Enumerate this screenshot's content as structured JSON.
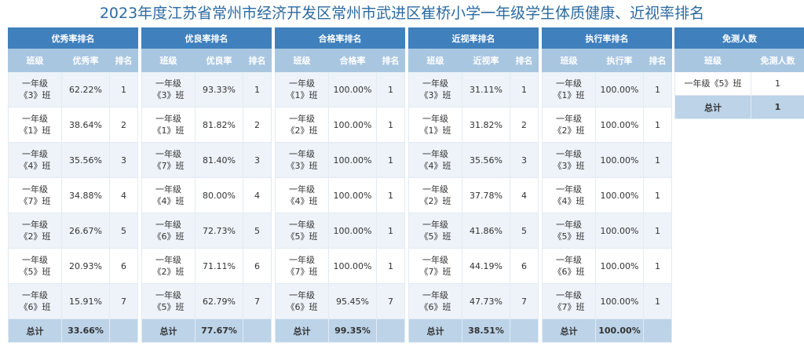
{
  "title": "2023年度江苏省常州市经济开发区常州市武进区崔桥小学一年级学生体质健康、近视率排名",
  "tables": [
    {
      "title": "优秀率排名",
      "headers": [
        "班级",
        "优秀率",
        "排名"
      ],
      "rows": [
        {
          "cls1": "一年级",
          "cls2": "《3》班",
          "value": "62.22%",
          "rank": "1"
        },
        {
          "cls1": "一年级",
          "cls2": "《1》班",
          "value": "38.64%",
          "rank": "2"
        },
        {
          "cls1": "一年级",
          "cls2": "《4》班",
          "value": "35.56%",
          "rank": "3"
        },
        {
          "cls1": "一年级",
          "cls2": "《7》班",
          "value": "34.88%",
          "rank": "4"
        },
        {
          "cls1": "一年级",
          "cls2": "《2》班",
          "value": "26.67%",
          "rank": "5"
        },
        {
          "cls1": "一年级",
          "cls2": "《5》班",
          "value": "20.93%",
          "rank": "6"
        },
        {
          "cls1": "一年级",
          "cls2": "《6》班",
          "value": "15.91%",
          "rank": "7"
        }
      ],
      "total_label": "总计",
      "total_value": "33.66%"
    },
    {
      "title": "优良率排名",
      "headers": [
        "班级",
        "优良率",
        "排名"
      ],
      "rows": [
        {
          "cls1": "一年级",
          "cls2": "《3》班",
          "value": "93.33%",
          "rank": "1"
        },
        {
          "cls1": "一年级",
          "cls2": "《1》班",
          "value": "81.82%",
          "rank": "2"
        },
        {
          "cls1": "一年级",
          "cls2": "《7》班",
          "value": "81.40%",
          "rank": "3"
        },
        {
          "cls1": "一年级",
          "cls2": "《4》班",
          "value": "80.00%",
          "rank": "4"
        },
        {
          "cls1": "一年级",
          "cls2": "《6》班",
          "value": "72.73%",
          "rank": "5"
        },
        {
          "cls1": "一年级",
          "cls2": "《2》班",
          "value": "71.11%",
          "rank": "6"
        },
        {
          "cls1": "一年级",
          "cls2": "《5》班",
          "value": "62.79%",
          "rank": "7"
        }
      ],
      "total_label": "总计",
      "total_value": "77.67%"
    },
    {
      "title": "合格率排名",
      "headers": [
        "班级",
        "合格率",
        "排名"
      ],
      "rows": [
        {
          "cls1": "一年级",
          "cls2": "《1》班",
          "value": "100.00%",
          "rank": "1"
        },
        {
          "cls1": "一年级",
          "cls2": "《2》班",
          "value": "100.00%",
          "rank": "1"
        },
        {
          "cls1": "一年级",
          "cls2": "《3》班",
          "value": "100.00%",
          "rank": "1"
        },
        {
          "cls1": "一年级",
          "cls2": "《4》班",
          "value": "100.00%",
          "rank": "1"
        },
        {
          "cls1": "一年级",
          "cls2": "《5》班",
          "value": "100.00%",
          "rank": "1"
        },
        {
          "cls1": "一年级",
          "cls2": "《7》班",
          "value": "100.00%",
          "rank": "1"
        },
        {
          "cls1": "一年级",
          "cls2": "《6》班",
          "value": "95.45%",
          "rank": "7"
        }
      ],
      "total_label": "总计",
      "total_value": "99.35%"
    },
    {
      "title": "近视率排名",
      "headers": [
        "班级",
        "近视率",
        "排名"
      ],
      "rows": [
        {
          "cls1": "一年级",
          "cls2": "《3》班",
          "value": "31.11%",
          "rank": "1"
        },
        {
          "cls1": "一年级",
          "cls2": "《1》班",
          "value": "31.82%",
          "rank": "2"
        },
        {
          "cls1": "一年级",
          "cls2": "《4》班",
          "value": "35.56%",
          "rank": "3"
        },
        {
          "cls1": "一年级",
          "cls2": "《2》班",
          "value": "37.78%",
          "rank": "4"
        },
        {
          "cls1": "一年级",
          "cls2": "《5》班",
          "value": "41.86%",
          "rank": "5"
        },
        {
          "cls1": "一年级",
          "cls2": "《7》班",
          "value": "44.19%",
          "rank": "6"
        },
        {
          "cls1": "一年级",
          "cls2": "《6》班",
          "value": "47.73%",
          "rank": "7"
        }
      ],
      "total_label": "总计",
      "total_value": "38.51%"
    },
    {
      "title": "执行率排名",
      "headers": [
        "班级",
        "执行率",
        "排名"
      ],
      "rows": [
        {
          "cls1": "一年级",
          "cls2": "《1》班",
          "value": "100.00%",
          "rank": "1"
        },
        {
          "cls1": "一年级",
          "cls2": "《2》班",
          "value": "100.00%",
          "rank": "1"
        },
        {
          "cls1": "一年级",
          "cls2": "《3》班",
          "value": "100.00%",
          "rank": "1"
        },
        {
          "cls1": "一年级",
          "cls2": "《4》班",
          "value": "100.00%",
          "rank": "1"
        },
        {
          "cls1": "一年级",
          "cls2": "《5》班",
          "value": "100.00%",
          "rank": "1"
        },
        {
          "cls1": "一年级",
          "cls2": "《6》班",
          "value": "100.00%",
          "rank": "1"
        },
        {
          "cls1": "一年级",
          "cls2": "《7》班",
          "value": "100.00%",
          "rank": "1"
        }
      ],
      "total_label": "总计",
      "total_value": "100.00%"
    }
  ],
  "exempt": {
    "title": "免测人数",
    "headers": [
      "班级",
      "免测人数"
    ],
    "rows": [
      {
        "cls": "一年级《5》班",
        "count": "1"
      }
    ],
    "total_label": "总计",
    "total_value": "1"
  }
}
